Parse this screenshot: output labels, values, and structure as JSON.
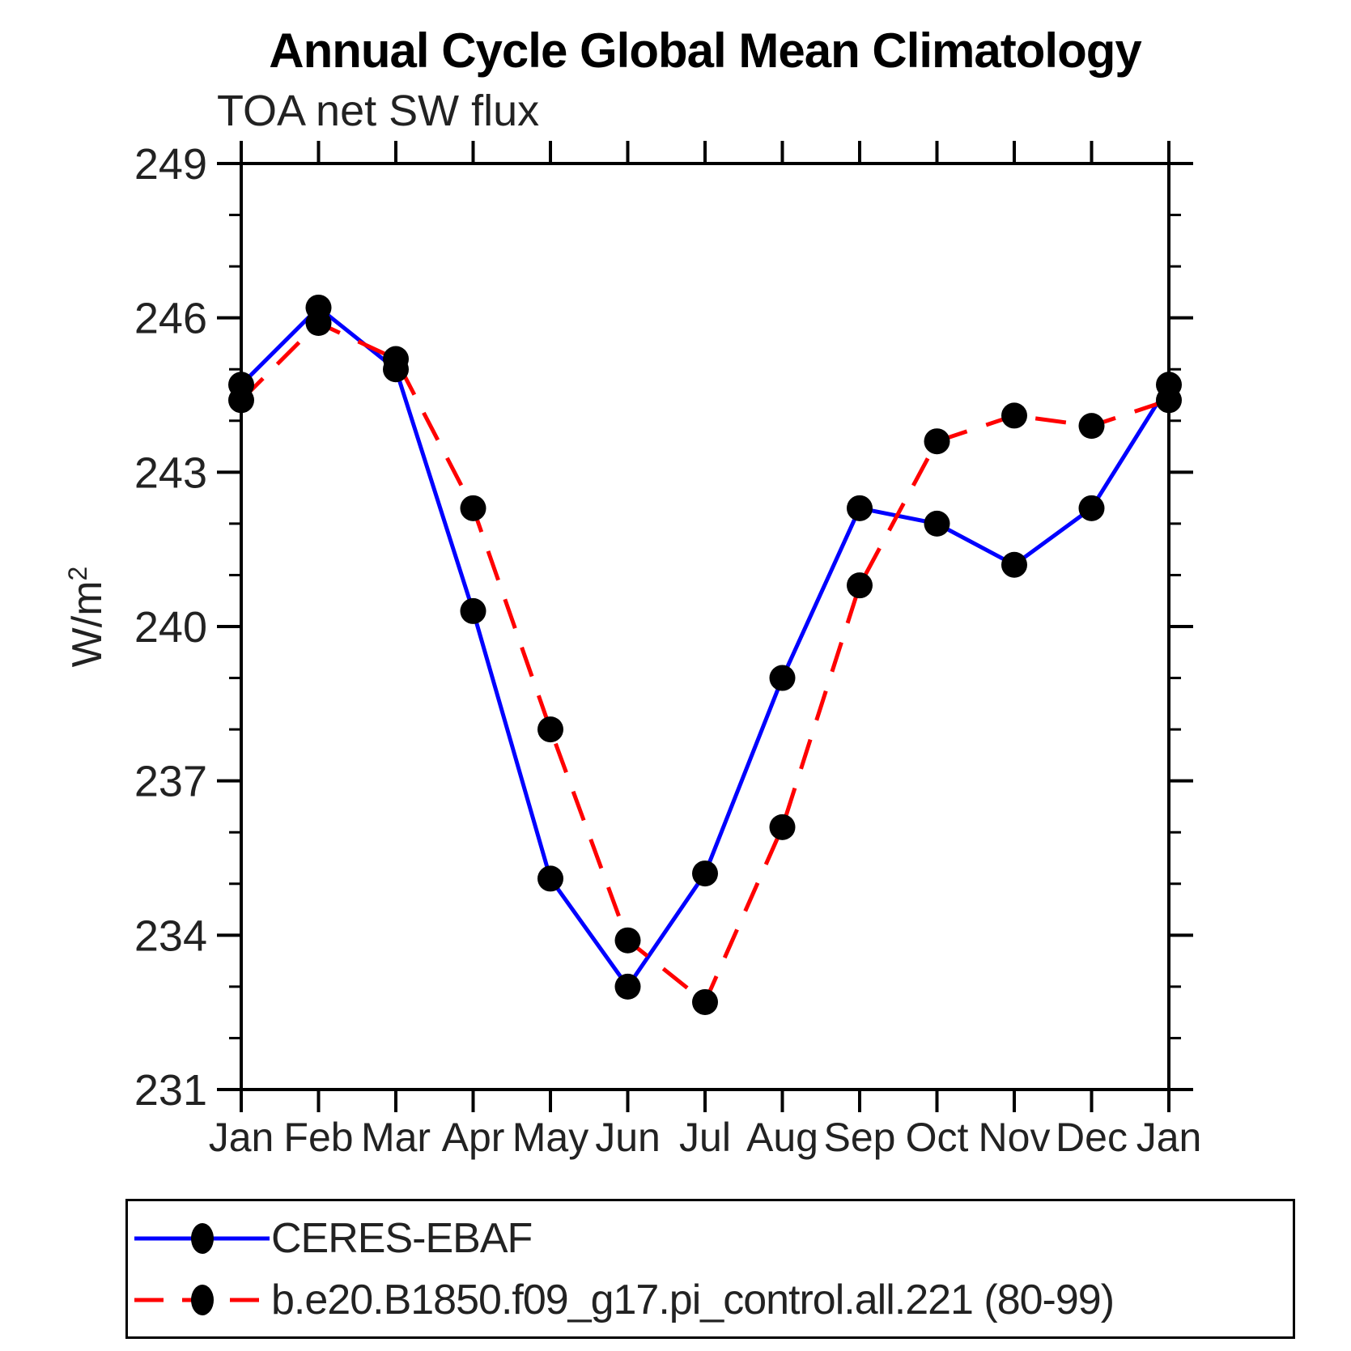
{
  "title": "Annual Cycle Global Mean Climatology",
  "chart_data": {
    "type": "line",
    "title": "Annual Cycle Global Mean Climatology",
    "subtitle": "TOA net SW flux",
    "ylabel_base": "W/m",
    "ylabel_sup": "2",
    "ylabel": "W/m2",
    "categories": [
      "Jan",
      "Feb",
      "Mar",
      "Apr",
      "May",
      "Jun",
      "Jul",
      "Aug",
      "Sep",
      "Oct",
      "Nov",
      "Dec",
      "Jan"
    ],
    "ylim": [
      231,
      249
    ],
    "ytick_major": [
      249,
      246,
      243,
      240,
      237,
      234,
      231
    ],
    "ytick_minor_step": 1,
    "grid": false,
    "legend_position": "bottom",
    "axis_color": "#000000",
    "series": [
      {
        "name": "CERES-EBAF",
        "color": "#0000ff",
        "style": "solid",
        "marker": "circle",
        "marker_color": "#000000",
        "values": [
          244.7,
          246.2,
          245.0,
          240.3,
          235.1,
          233.0,
          235.2,
          239.0,
          242.3,
          242.0,
          241.2,
          242.3,
          244.7
        ]
      },
      {
        "name": "b.e20.B1850.f09_g17.pi_control.all.221 (80-99)",
        "color": "#ff0000",
        "style": "dashed",
        "marker": "circle",
        "marker_color": "#000000",
        "values": [
          244.4,
          245.9,
          245.2,
          242.3,
          238.0,
          233.9,
          232.7,
          236.1,
          240.8,
          243.6,
          244.1,
          243.9,
          244.4
        ]
      }
    ]
  }
}
